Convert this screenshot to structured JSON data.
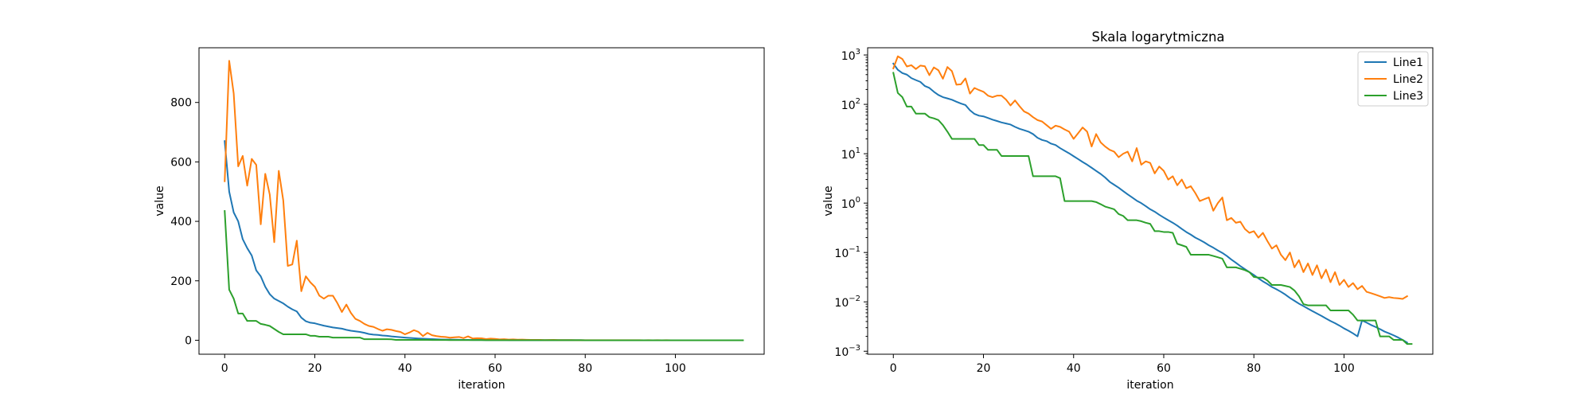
{
  "chart_data": [
    {
      "type": "line",
      "title": "",
      "xlabel": "iteration",
      "ylabel": "value",
      "yscale": "linear",
      "xlim": [
        -5.7,
        119.7
      ],
      "ylim": [
        -47,
        984
      ],
      "xticks": [
        0,
        20,
        40,
        60,
        80,
        100
      ],
      "yticks": [
        0,
        200,
        400,
        600,
        800
      ],
      "xtick_labels": [
        "0",
        "20",
        "40",
        "60",
        "80",
        "100"
      ],
      "ytick_labels": [
        "0",
        "200",
        "400",
        "600",
        "800"
      ],
      "grid": false,
      "legend": null,
      "series_ref": "shared"
    },
    {
      "type": "line",
      "title": "Skala logarytmiczna",
      "xlabel": "iteration",
      "ylabel": "value",
      "yscale": "log",
      "xlim": [
        -5.7,
        119.7
      ],
      "ylim": [
        0.00087,
        1400
      ],
      "xticks": [
        0,
        20,
        40,
        60,
        80,
        100
      ],
      "xtick_labels": [
        "0",
        "20",
        "40",
        "60",
        "80",
        "100"
      ],
      "yticks": [
        0.001,
        0.01,
        0.1,
        1,
        10,
        100,
        1000
      ],
      "ytick_labels": [
        {
          "base": "10",
          "exp": "−3"
        },
        {
          "base": "10",
          "exp": "−2"
        },
        {
          "base": "10",
          "exp": "−1"
        },
        {
          "base": "10",
          "exp": "0"
        },
        {
          "base": "10",
          "exp": "1"
        },
        {
          "base": "10",
          "exp": "2"
        },
        {
          "base": "10",
          "exp": "3"
        }
      ],
      "grid": false,
      "legend": "top-right",
      "series_ref": "shared"
    }
  ],
  "series": [
    {
      "name": "Line1",
      "color": "#1f77b4",
      "values": [
        670,
        500,
        430,
        400,
        340,
        310,
        285,
        235,
        215,
        180,
        155,
        140,
        132,
        124,
        113,
        104,
        97,
        76,
        64,
        59,
        57,
        53,
        49,
        46,
        43,
        41,
        39,
        35,
        32,
        30,
        28,
        25,
        21,
        19,
        18,
        16,
        15,
        13,
        11.5,
        10.2,
        8.9,
        7.8,
        6.8,
        6,
        5.2,
        4.5,
        3.9,
        3.3,
        2.7,
        2.35,
        2.05,
        1.75,
        1.5,
        1.3,
        1.12,
        1.0,
        0.87,
        0.75,
        0.67,
        0.58,
        0.51,
        0.45,
        0.4,
        0.35,
        0.3,
        0.26,
        0.23,
        0.2,
        0.18,
        0.16,
        0.14,
        0.125,
        0.11,
        0.098,
        0.085,
        0.072,
        0.062,
        0.053,
        0.046,
        0.04,
        0.035,
        0.03,
        0.026,
        0.023,
        0.02,
        0.018,
        0.016,
        0.014,
        0.012,
        0.0105,
        0.0092,
        0.0082,
        0.0073,
        0.0065,
        0.0058,
        0.0052,
        0.0046,
        0.0041,
        0.0037,
        0.0033,
        0.0029,
        0.0026,
        0.0023,
        0.002,
        0.0042,
        0.0038,
        0.0034,
        0.0031,
        0.0028,
        0.0025,
        0.0023,
        0.0021,
        0.0019,
        0.0017,
        0.0015
      ]
    },
    {
      "name": "Line2",
      "color": "#ff7f0e",
      "values": [
        535,
        940,
        830,
        585,
        620,
        520,
        610,
        590,
        390,
        560,
        490,
        330,
        570,
        470,
        250,
        255,
        335,
        165,
        215,
        195,
        180,
        150,
        140,
        150,
        150,
        125,
        95,
        120,
        92,
        72,
        65,
        55,
        48,
        45,
        38,
        32,
        37,
        35,
        31,
        28,
        20,
        26,
        34,
        28,
        14,
        25,
        17,
        14,
        12,
        11,
        8.5,
        10,
        11,
        7,
        13,
        6,
        7,
        6.5,
        4,
        5.5,
        4.5,
        3,
        3.5,
        2.3,
        3,
        2,
        2.2,
        1.6,
        1.1,
        1.2,
        1.3,
        0.7,
        1.0,
        1.3,
        0.45,
        0.5,
        0.4,
        0.42,
        0.3,
        0.25,
        0.27,
        0.2,
        0.25,
        0.17,
        0.12,
        0.14,
        0.09,
        0.07,
        0.1,
        0.05,
        0.07,
        0.04,
        0.06,
        0.035,
        0.055,
        0.03,
        0.045,
        0.025,
        0.04,
        0.022,
        0.028,
        0.02,
        0.024,
        0.018,
        0.021,
        0.016,
        0.015,
        0.014,
        0.013,
        0.012,
        0.0125,
        0.012,
        0.0118,
        0.0115,
        0.013
      ]
    },
    {
      "name": "Line3",
      "color": "#2ca02c",
      "values": [
        435,
        170,
        140,
        90,
        90,
        65,
        65,
        65,
        55,
        52,
        48,
        38,
        28,
        20,
        20,
        20,
        20,
        20,
        20,
        15,
        15,
        12,
        12,
        12,
        9,
        9,
        9,
        9,
        9,
        9,
        9,
        3.5,
        3.5,
        3.5,
        3.5,
        3.5,
        3.5,
        3.2,
        1.1,
        1.1,
        1.1,
        1.1,
        1.1,
        1.1,
        1.1,
        1.05,
        0.95,
        0.85,
        0.8,
        0.75,
        0.6,
        0.55,
        0.45,
        0.45,
        0.45,
        0.43,
        0.4,
        0.38,
        0.27,
        0.27,
        0.26,
        0.26,
        0.25,
        0.15,
        0.14,
        0.13,
        0.09,
        0.09,
        0.09,
        0.09,
        0.09,
        0.085,
        0.08,
        0.075,
        0.05,
        0.05,
        0.05,
        0.047,
        0.044,
        0.04,
        0.032,
        0.031,
        0.031,
        0.027,
        0.022,
        0.022,
        0.022,
        0.021,
        0.02,
        0.017,
        0.013,
        0.009,
        0.0085,
        0.0085,
        0.0085,
        0.0085,
        0.0085,
        0.0067,
        0.0067,
        0.0067,
        0.0067,
        0.0067,
        0.0055,
        0.0042,
        0.0042,
        0.0042,
        0.0042,
        0.0042,
        0.002,
        0.002,
        0.002,
        0.0017,
        0.0017,
        0.0017,
        0.0014,
        0.0014
      ]
    }
  ],
  "x_start": 0,
  "x_step": 1
}
